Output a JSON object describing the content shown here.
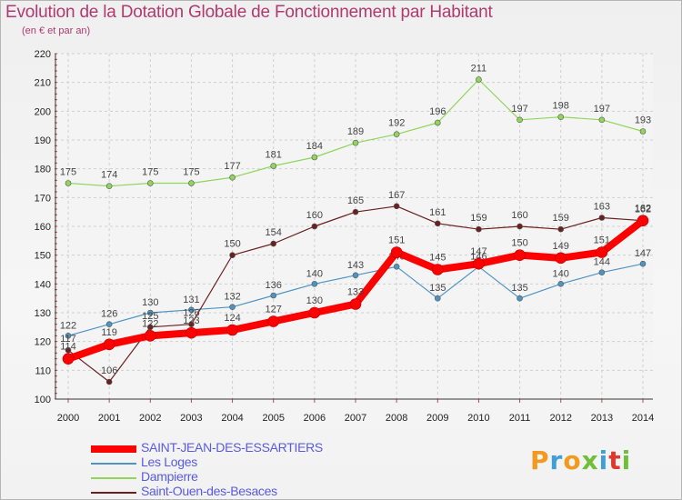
{
  "header": {
    "title": "Evolution de la Dotation Globale de Fonctionnement par Habitant",
    "subtitle": "(en € et par an)"
  },
  "logo": {
    "text": "Proxiti"
  },
  "chart_data": {
    "type": "line",
    "title": "Evolution de la Dotation Globale de Fonctionnement par Habitant",
    "subtitle": "(en € et par an)",
    "xlabel": "",
    "ylabel": "",
    "ylim": [
      100,
      220
    ],
    "yticks": [
      100,
      110,
      120,
      130,
      140,
      150,
      160,
      170,
      180,
      190,
      200,
      210,
      220
    ],
    "categories": [
      "2000",
      "2001",
      "2002",
      "2003",
      "2004",
      "2005",
      "2006",
      "2007",
      "2008",
      "2009",
      "2010",
      "2011",
      "2012",
      "2013",
      "2014"
    ],
    "grid": true,
    "legend_position": "bottom-left",
    "series": [
      {
        "name": "Les Loges",
        "color": "#4f93c3",
        "values": [
          122,
          126,
          130,
          131,
          132,
          136,
          140,
          143,
          146,
          135,
          146,
          135,
          140,
          144,
          147
        ]
      },
      {
        "name": "Dampierre",
        "color": "#8fd65a",
        "values": [
          175,
          174,
          175,
          175,
          177,
          181,
          184,
          189,
          192,
          196,
          211,
          197,
          198,
          197,
          193
        ]
      },
      {
        "name": "Saint-Ouen-des-Besaces",
        "color": "#6b1f1f",
        "values": [
          117,
          106,
          125,
          126,
          150,
          154,
          160,
          165,
          167,
          161,
          159,
          160,
          159,
          163,
          162
        ]
      },
      {
        "name": "SAINT-JEAN-DES-ESSARTIERS",
        "color": "#ff0000",
        "values": [
          114,
          119,
          122,
          123,
          124,
          127,
          130,
          133,
          151,
          145,
          147,
          150,
          149,
          151,
          162
        ]
      }
    ]
  }
}
